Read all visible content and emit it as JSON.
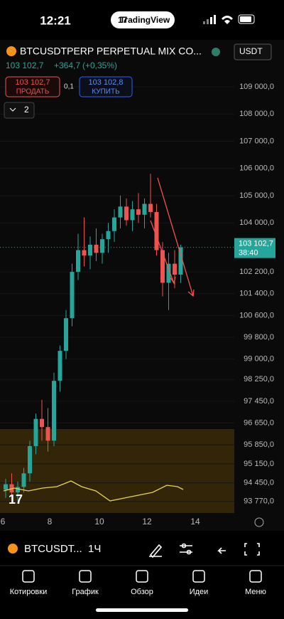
{
  "status_bar": {
    "time": "12:21",
    "app": "TradingView"
  },
  "header": {
    "symbol": "BTCUSDTPERP PERPETUAL MIX CO...",
    "currency": "USDT",
    "price": "103 102,7",
    "change": "+364,7",
    "change_pct": "(+0,35%)"
  },
  "trade": {
    "sell_price": "103 102,7",
    "sell_label": "ПРОДАТЬ",
    "spread": "0,1",
    "buy_price": "103 102,8",
    "buy_label": "КУПИТЬ"
  },
  "indicators_count": "2",
  "chart_data": {
    "type": "candlestick",
    "ylim": [
      93370,
      110620
    ],
    "yticks": [
      {
        "value": 109000,
        "label": "109 000,0"
      },
      {
        "value": 108000,
        "label": "108 000,0"
      },
      {
        "value": 107000,
        "label": "107 000,0"
      },
      {
        "value": 106000,
        "label": "106 000,0"
      },
      {
        "value": 105000,
        "label": "105 000,0"
      },
      {
        "value": 104000,
        "label": "104 000,0"
      },
      {
        "value": 102200,
        "label": "102 200,0"
      },
      {
        "value": 101400,
        "label": "101 400,0"
      },
      {
        "value": 100600,
        "label": "100 600,0"
      },
      {
        "value": 99800,
        "label": "99 800,0"
      },
      {
        "value": 99000,
        "label": "99 000,0"
      },
      {
        "value": 98250,
        "label": "98 250,0"
      },
      {
        "value": 97450,
        "label": "97 450,0"
      },
      {
        "value": 96650,
        "label": "96 650,0"
      },
      {
        "value": 95850,
        "label": "95 850,0"
      },
      {
        "value": 95150,
        "label": "95 150,0"
      },
      {
        "value": 94450,
        "label": "94 450,0"
      },
      {
        "value": 93770,
        "label": "93 770,0"
      }
    ],
    "last_price": {
      "value": 103102.7,
      "label": "103 102,7",
      "countdown": "38:40"
    },
    "x_labels": [
      "6",
      "8",
      "10",
      "12",
      "14"
    ],
    "up_color": "#26a69a",
    "down_color": "#ef5350",
    "candles": [
      [
        94200,
        94600,
        93900,
        94400
      ],
      [
        94400,
        94800,
        94000,
        94100
      ],
      [
        94100,
        94500,
        93800,
        94300
      ],
      [
        94300,
        95000,
        94100,
        94800
      ],
      [
        94800,
        96000,
        94500,
        95800
      ],
      [
        95800,
        97000,
        95500,
        96800
      ],
      [
        96800,
        97500,
        96000,
        96500
      ],
      [
        96500,
        97200,
        95600,
        96000
      ],
      [
        96000,
        98500,
        95800,
        98200
      ],
      [
        98200,
        99500,
        97800,
        99300
      ],
      [
        99300,
        100800,
        99000,
        100500
      ],
      [
        100500,
        102500,
        100200,
        102200
      ],
      [
        102200,
        103600,
        101900,
        103000
      ],
      [
        103000,
        104200,
        102400,
        102800
      ],
      [
        102800,
        103500,
        102300,
        103200
      ],
      [
        103200,
        103800,
        102600,
        102900
      ],
      [
        102900,
        103600,
        102500,
        103400
      ],
      [
        103400,
        104000,
        102900,
        103700
      ],
      [
        103700,
        104500,
        103300,
        104200
      ],
      [
        104200,
        105000,
        103800,
        104600
      ],
      [
        104600,
        104900,
        103900,
        104100
      ],
      [
        104100,
        104800,
        103700,
        104500
      ],
      [
        104500,
        105100,
        104000,
        104300
      ],
      [
        104300,
        104900,
        103800,
        104700
      ],
      [
        104700,
        105800,
        104200,
        104400
      ],
      [
        104400,
        104700,
        102800,
        103000
      ],
      [
        103000,
        103300,
        101300,
        101800
      ],
      [
        101800,
        102900,
        100800,
        102500
      ],
      [
        102500,
        103000,
        101600,
        102100
      ],
      [
        102100,
        103200,
        101800,
        103102.7
      ]
    ]
  },
  "toolbar": {
    "symbol": "BTCUSDT...",
    "interval": "1Ч"
  },
  "tabs": [
    "Котировки",
    "График",
    "Обзор",
    "Идеи",
    "Меню"
  ]
}
